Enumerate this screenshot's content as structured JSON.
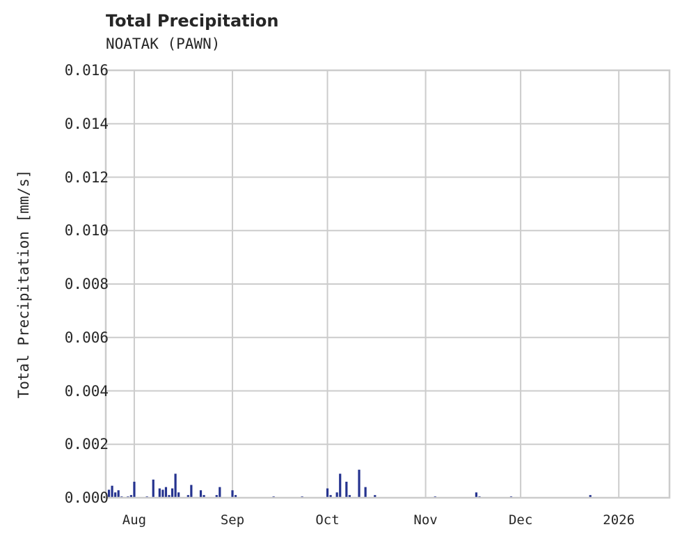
{
  "chart": {
    "title": "Total Precipitation",
    "subtitle": "NOATAK (PAWN)",
    "ylabel": "Total Precipitation [mm/s]"
  },
  "colors": {
    "bar": "#25338f",
    "grid": "#cccccc",
    "text": "#262626"
  },
  "chart_data": {
    "type": "bar",
    "title": "Total Precipitation",
    "subtitle": "NOATAK (PAWN)",
    "xlabel": "",
    "ylabel": "Total Precipitation [mm/s]",
    "ylim": [
      0,
      0.016
    ],
    "yticks": [
      "0.000",
      "0.002",
      "0.004",
      "0.006",
      "0.008",
      "0.010",
      "0.012",
      "0.014",
      "0.016"
    ],
    "xticks": [
      "Aug",
      "Sep",
      "Oct",
      "Nov",
      "Dec",
      "2026"
    ],
    "grid": true,
    "legend": null,
    "x_range": [
      "2025-07-23",
      "2026-01-17"
    ],
    "series": [
      {
        "name": "Total Precipitation",
        "points": [
          {
            "date": "2025-07-24",
            "value": 0.0003
          },
          {
            "date": "2025-07-25",
            "value": 0.00045
          },
          {
            "date": "2025-07-26",
            "value": 0.0002
          },
          {
            "date": "2025-07-27",
            "value": 0.00028
          },
          {
            "date": "2025-07-28",
            "value": 5e-05
          },
          {
            "date": "2025-07-30",
            "value": 5e-05
          },
          {
            "date": "2025-07-31",
            "value": 0.0001
          },
          {
            "date": "2025-08-01",
            "value": 0.0006
          },
          {
            "date": "2025-08-05",
            "value": 5e-05
          },
          {
            "date": "2025-08-07",
            "value": 0.00068
          },
          {
            "date": "2025-08-09",
            "value": 0.00035
          },
          {
            "date": "2025-08-10",
            "value": 0.0003
          },
          {
            "date": "2025-08-11",
            "value": 0.0004
          },
          {
            "date": "2025-08-12",
            "value": 0.0001
          },
          {
            "date": "2025-08-13",
            "value": 0.00035
          },
          {
            "date": "2025-08-14",
            "value": 0.0009
          },
          {
            "date": "2025-08-15",
            "value": 0.0002
          },
          {
            "date": "2025-08-18",
            "value": 0.0001
          },
          {
            "date": "2025-08-19",
            "value": 0.00048
          },
          {
            "date": "2025-08-22",
            "value": 0.00028
          },
          {
            "date": "2025-08-23",
            "value": 0.0001
          },
          {
            "date": "2025-08-27",
            "value": 0.0001
          },
          {
            "date": "2025-08-28",
            "value": 0.0004
          },
          {
            "date": "2025-09-01",
            "value": 0.00028
          },
          {
            "date": "2025-09-02",
            "value": 0.0001
          },
          {
            "date": "2025-09-14",
            "value": 5e-05
          },
          {
            "date": "2025-09-23",
            "value": 5e-05
          },
          {
            "date": "2025-10-01",
            "value": 0.00035
          },
          {
            "date": "2025-10-02",
            "value": 0.0001
          },
          {
            "date": "2025-10-04",
            "value": 0.0002
          },
          {
            "date": "2025-10-05",
            "value": 0.0009
          },
          {
            "date": "2025-10-07",
            "value": 0.0006
          },
          {
            "date": "2025-10-08",
            "value": 0.0001
          },
          {
            "date": "2025-10-11",
            "value": 0.00105
          },
          {
            "date": "2025-10-13",
            "value": 0.0004
          },
          {
            "date": "2025-10-16",
            "value": 0.0001
          },
          {
            "date": "2025-11-04",
            "value": 5e-05
          },
          {
            "date": "2025-11-17",
            "value": 0.0002
          },
          {
            "date": "2025-11-18",
            "value": 5e-05
          },
          {
            "date": "2025-11-28",
            "value": 5e-05
          },
          {
            "date": "2025-12-23",
            "value": 0.0001
          }
        ]
      }
    ]
  }
}
